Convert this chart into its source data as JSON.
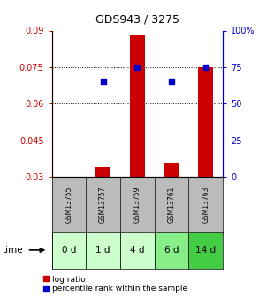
{
  "title": "GDS943 / 3275",
  "samples": [
    "GSM13755",
    "GSM13757",
    "GSM13759",
    "GSM13761",
    "GSM13763"
  ],
  "time_labels": [
    "0 d",
    "1 d",
    "4 d",
    "6 d",
    "14 d"
  ],
  "log_ratio": [
    0.03,
    0.034,
    0.088,
    0.036,
    0.075
  ],
  "percentile_rank": [
    null,
    65,
    75,
    65,
    75
  ],
  "ylim_left": [
    0.03,
    0.09
  ],
  "ylim_right": [
    0,
    100
  ],
  "yticks_left": [
    0.03,
    0.045,
    0.06,
    0.075,
    0.09
  ],
  "yticks_right": [
    0,
    25,
    50,
    75,
    100
  ],
  "ytick_labels_left": [
    "0.03",
    "0.045",
    "0.06",
    "0.075",
    "0.09"
  ],
  "ytick_labels_right": [
    "0",
    "25",
    "50",
    "75",
    "100%"
  ],
  "bar_color": "#cc0000",
  "dot_color": "#0000cc",
  "bar_width": 0.45,
  "bg_color": "#ffffff",
  "gsm_bg": "#bbbbbb",
  "time_bg_colors": [
    "#ccffcc",
    "#ccffcc",
    "#ccffcc",
    "#88ee88",
    "#44cc44"
  ],
  "legend_bar_label": "log ratio",
  "legend_dot_label": "percentile rank within the sample",
  "title_fontsize": 9,
  "tick_fontsize": 7,
  "gsm_fontsize": 5.5,
  "time_fontsize": 7.5
}
